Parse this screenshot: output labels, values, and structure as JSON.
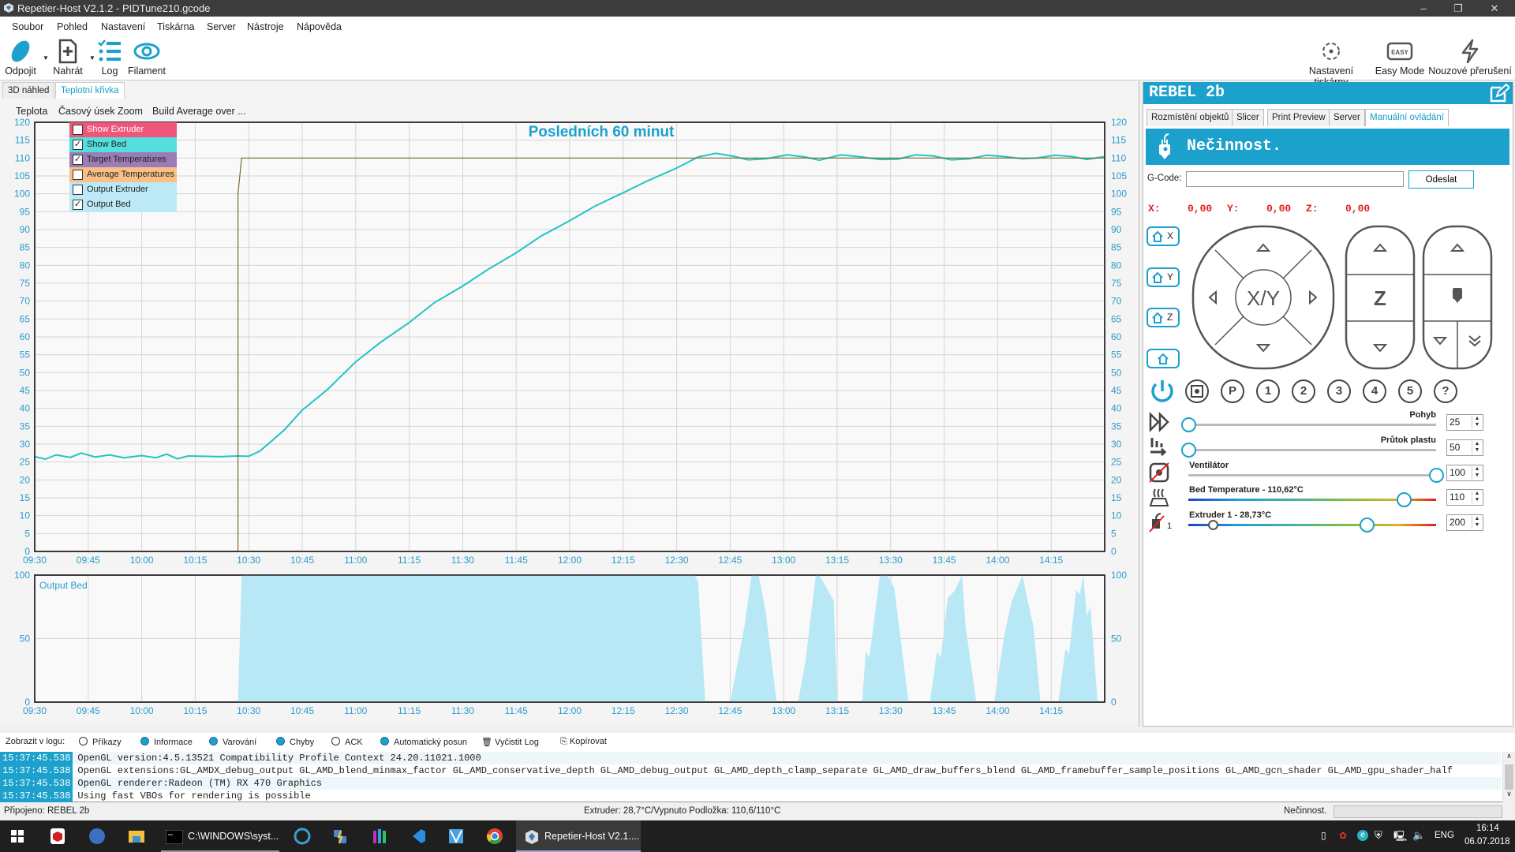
{
  "window": {
    "title": "Repetier-Host V2.1.2 - PIDTune210.gcode",
    "minimize": "–",
    "maximize": "❐",
    "close": "✕"
  },
  "menu": [
    "Soubor",
    "Pohled",
    "Nastavení",
    "Tiskárna",
    "Server",
    "Nástroje",
    "Nápověda"
  ],
  "toolbar": {
    "disconnect": "Odpojit",
    "load": "Nahrát",
    "log": "Log",
    "filament": "Filament",
    "printer_settings": "Nastavení tiskárny",
    "easy_mode": "Easy Mode",
    "easy_badge": "EASY",
    "emergency": "Nouzové přerušení"
  },
  "left_tabs": [
    "3D náhled",
    "Teplotní křivka"
  ],
  "chart_menu": [
    "Teplota",
    "Časový úsek",
    "Zoom",
    "Build Average over ..."
  ],
  "legend": [
    {
      "label": "Show Extruder",
      "checked": false,
      "color": "#f0557a"
    },
    {
      "label": "Show Bed",
      "checked": true,
      "color": "#55dede"
    },
    {
      "label": "Target Temperatures",
      "checked": true,
      "color": "#9b7db5"
    },
    {
      "label": "Average Temperatures",
      "checked": false,
      "color": "#f9bf86"
    },
    {
      "label": "Output Extruder",
      "checked": false,
      "color": "#bde9f6"
    },
    {
      "label": "Output Bed",
      "checked": true,
      "color": "#bde9f6"
    }
  ],
  "chart_data": [
    {
      "type": "line",
      "title": "Posledních 60 minut",
      "xlim": [
        "09:30",
        "14:30"
      ],
      "ylim": [
        0,
        120
      ],
      "grid": true,
      "x_ticks": [
        "09:30",
        "09:45",
        "10:00",
        "10:15",
        "10:30",
        "10:45",
        "11:00",
        "11:15",
        "11:30",
        "11:45",
        "12:00",
        "12:15",
        "12:30",
        "12:45",
        "13:00",
        "13:15",
        "13:30",
        "13:45",
        "14:00",
        "14:15"
      ],
      "y_ticks": [
        0,
        5,
        10,
        15,
        20,
        25,
        30,
        35,
        40,
        45,
        50,
        55,
        60,
        65,
        70,
        75,
        80,
        85,
        90,
        95,
        100,
        105,
        110,
        115,
        120
      ],
      "series": [
        {
          "name": "Show Bed",
          "color": "#22c4c4",
          "points": [
            [
              "09:30",
              26.5
            ],
            [
              "09:33",
              25.8
            ],
            [
              "09:36",
              27
            ],
            [
              "09:40",
              26.3
            ],
            [
              "09:43",
              27.5
            ],
            [
              "09:47",
              26.4
            ],
            [
              "09:51",
              27
            ],
            [
              "09:55",
              26.2
            ],
            [
              "10:00",
              26.8
            ],
            [
              "10:04",
              26.2
            ],
            [
              "10:07",
              27.2
            ],
            [
              "10:10",
              25.9
            ],
            [
              "10:13",
              26.7
            ],
            [
              "10:17",
              26.6
            ],
            [
              "10:22",
              26.5
            ],
            [
              "10:27",
              26.7
            ],
            [
              "10:30",
              26.6
            ],
            [
              "10:33",
              28
            ],
            [
              "10:36",
              30.5
            ],
            [
              "10:40",
              34
            ],
            [
              "10:45",
              39.5
            ],
            [
              "10:52",
              45.2
            ],
            [
              "11:00",
              53
            ],
            [
              "11:07",
              58.5
            ],
            [
              "11:15",
              64
            ],
            [
              "11:22",
              69.5
            ],
            [
              "11:30",
              74.2
            ],
            [
              "11:37",
              78.8
            ],
            [
              "11:45",
              83.5
            ],
            [
              "11:52",
              88.2
            ],
            [
              "12:00",
              92.5
            ],
            [
              "12:07",
              96.5
            ],
            [
              "12:15",
              100.3
            ],
            [
              "12:22",
              103.7
            ],
            [
              "12:30",
              107.2
            ],
            [
              "12:36",
              110.3
            ],
            [
              "12:41",
              111.3
            ],
            [
              "12:46",
              110.5
            ],
            [
              "12:50",
              109.5
            ],
            [
              "12:55",
              109.8
            ],
            [
              "13:01",
              110.9
            ],
            [
              "13:06",
              110.3
            ],
            [
              "13:10",
              109.4
            ],
            [
              "13:16",
              110.9
            ],
            [
              "13:21",
              110.4
            ],
            [
              "13:27",
              109.6
            ],
            [
              "13:32",
              109.7
            ],
            [
              "13:37",
              110.9
            ],
            [
              "13:42",
              110.6
            ],
            [
              "13:47",
              109.5
            ],
            [
              "13:52",
              109.8
            ],
            [
              "13:57",
              110.8
            ],
            [
              "14:02",
              110.4
            ],
            [
              "14:07",
              109.8
            ],
            [
              "14:11",
              110.0
            ],
            [
              "14:16",
              110.8
            ],
            [
              "14:21",
              110.4
            ],
            [
              "14:25",
              109.6
            ],
            [
              "14:30",
              110.4
            ]
          ]
        },
        {
          "name": "Target Temperatures",
          "color": "#7a6a30",
          "points": [
            [
              "09:30",
              0
            ],
            [
              "10:27",
              0
            ],
            [
              "10:27",
              100
            ],
            [
              "10:28",
              110
            ],
            [
              "14:30",
              110
            ]
          ]
        }
      ]
    },
    {
      "type": "area",
      "title": "Output Bed",
      "xlim": [
        "09:30",
        "14:30"
      ],
      "ylim": [
        0,
        100
      ],
      "grid": true,
      "x_ticks": [
        "09:30",
        "09:45",
        "10:00",
        "10:15",
        "10:30",
        "10:45",
        "11:00",
        "11:15",
        "11:30",
        "11:45",
        "12:00",
        "12:15",
        "12:30",
        "12:45",
        "13:00",
        "13:15",
        "13:30",
        "13:45",
        "14:00",
        "14:15"
      ],
      "y_ticks": [
        0,
        50,
        100
      ],
      "series": [
        {
          "name": "Output Bed",
          "color": "#b8e8f6",
          "points": [
            [
              "09:30",
              0
            ],
            [
              "10:27",
              0
            ],
            [
              "10:28",
              100
            ],
            [
              "12:35",
              100
            ],
            [
              "12:36",
              95
            ],
            [
              "12:38",
              0
            ],
            [
              "12:45",
              0
            ],
            [
              "12:49",
              60
            ],
            [
              "12:51",
              100
            ],
            [
              "12:53",
              100
            ],
            [
              "12:55",
              70
            ],
            [
              "12:58",
              0
            ],
            [
              "13:04",
              0
            ],
            [
              "13:06",
              30
            ],
            [
              "13:09",
              100
            ],
            [
              "13:10",
              100
            ],
            [
              "13:14",
              80
            ],
            [
              "13:15",
              0
            ],
            [
              "13:22",
              0
            ],
            [
              "13:23",
              40
            ],
            [
              "13:24",
              35
            ],
            [
              "13:27",
              100
            ],
            [
              "13:29",
              100
            ],
            [
              "13:31",
              90
            ],
            [
              "13:35",
              0
            ],
            [
              "13:41",
              0
            ],
            [
              "13:43",
              40
            ],
            [
              "13:44",
              35
            ],
            [
              "13:46",
              82
            ],
            [
              "13:48",
              88
            ],
            [
              "13:50",
              100
            ],
            [
              "13:51",
              60
            ],
            [
              "13:54",
              0
            ],
            [
              "13:59",
              0
            ],
            [
              "14:02",
              55
            ],
            [
              "14:04",
              80
            ],
            [
              "14:07",
              100
            ],
            [
              "14:08",
              85
            ],
            [
              "14:10",
              60
            ],
            [
              "14:12",
              0
            ],
            [
              "14:17",
              0
            ],
            [
              "14:19",
              42
            ],
            [
              "14:20",
              38
            ],
            [
              "14:22",
              88
            ],
            [
              "14:23",
              85
            ],
            [
              "14:24",
              100
            ],
            [
              "14:25",
              68
            ],
            [
              "14:26",
              75
            ],
            [
              "14:28",
              0
            ],
            [
              "14:30",
              0
            ]
          ]
        }
      ]
    }
  ],
  "right": {
    "printer": "REBEL 2b",
    "tabs": [
      "Rozmístění objektů",
      "Slicer",
      "Print Preview",
      "Server",
      "Manuální ovládání"
    ],
    "status": "Nečinnost.",
    "gcode_label": "G-Code:",
    "gcode_value": "",
    "send": "Odeslat",
    "pos": {
      "x_label": "X:",
      "x": "0,00",
      "y_label": "Y:",
      "y": "0,00",
      "z_label": "Z:",
      "z": "0,00"
    },
    "home": [
      "X",
      "Y",
      "Z",
      ""
    ],
    "xy": "X/Y",
    "z": "Z",
    "round_buttons": [
      "P",
      "1",
      "2",
      "3",
      "4",
      "5",
      "?"
    ],
    "sliders": [
      {
        "label": "Pohyb",
        "value": "25",
        "fraction": 0
      },
      {
        "label": "Průtok plastu",
        "value": "50",
        "fraction": 0
      },
      {
        "label": "Ventilátor",
        "value": "100",
        "fraction": 1
      },
      {
        "label": "Bed Temperature - 110,62°C",
        "value": "110",
        "fraction": 0.87
      },
      {
        "label": "Extruder 1 - 28,73°C",
        "value": "200",
        "fraction": 0.72,
        "current_fraction": 0.1
      }
    ],
    "extruder_index": "1"
  },
  "logbar": {
    "label": "Zobrazit v logu:",
    "items": [
      {
        "label": "Příkazy",
        "on": false
      },
      {
        "label": "Informace",
        "on": true
      },
      {
        "label": "Varování",
        "on": true
      },
      {
        "label": "Chyby",
        "on": true
      },
      {
        "label": "ACK",
        "on": false
      },
      {
        "label": "Automatický posun",
        "on": true
      }
    ],
    "clear": "Vyčistit Log",
    "copy": "Kopírovat"
  },
  "log": [
    {
      "time": "15:37:45.538",
      "text": "OpenGL version:4.5.13521 Compatibility Profile Context 24.20.11021.1000"
    },
    {
      "time": "15:37:45.538",
      "text": "OpenGL extensions:GL_AMDX_debug_output GL_AMD_blend_minmax_factor GL_AMD_conservative_depth GL_AMD_debug_output GL_AMD_depth_clamp_separate GL_AMD_draw_buffers_blend GL_AMD_framebuffer_sample_positions GL_AMD_gcn_shader GL_AMD_gpu_shader_half"
    },
    {
      "time": "15:37:45.538",
      "text": "OpenGL renderer:Radeon (TM) RX 470 Graphics"
    },
    {
      "time": "15:37:45.538",
      "text": "Using fast VBOs for rendering is possible"
    }
  ],
  "statusbar": {
    "connected": "Připojeno: REBEL 2b",
    "temps": "Extruder: 28,7°C/Vypnuto Podložka: 110,6/110°C",
    "state": "Nečinnost."
  },
  "taskbar": {
    "cmd": "C:\\WINDOWS\\syst...",
    "repetier": "Repetier-Host V2.1....",
    "lang": "ENG",
    "time": "16:14",
    "date": "06.07.2018"
  }
}
